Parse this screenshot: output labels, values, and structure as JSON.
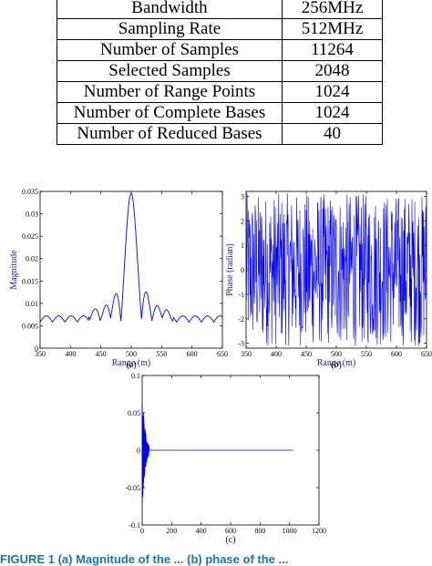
{
  "table": {
    "rows": [
      {
        "param": "Bandwidth",
        "value": "256MHz"
      },
      {
        "param": "Sampling Rate",
        "value": "512MHz"
      },
      {
        "param": "Number of Samples",
        "value": "11264"
      },
      {
        "param": "Selected Samples",
        "value": "2048"
      },
      {
        "param": "Number of Range Points",
        "value": "1024"
      },
      {
        "param": "Number of Complete Bases",
        "value": "1024"
      },
      {
        "param": "Number of Reduced Bases",
        "value": "40"
      }
    ]
  },
  "caption": "FIGURE 1  (a) Magnitude of the ... (b) phase of the ...",
  "colors": {
    "line": "#0000ff",
    "label": "#1a1aa6"
  },
  "chart_data": [
    {
      "type": "line",
      "sublabel": "(a)",
      "xlabel": "Range (m)",
      "ylabel": "Magnitude",
      "xlim": [
        350,
        650
      ],
      "ylim": [
        0,
        0.035
      ],
      "xticks": [
        350,
        400,
        450,
        500,
        550,
        600,
        650
      ],
      "yticks": [
        0,
        0.005,
        0.01,
        0.015,
        0.02,
        0.025,
        0.03,
        0.035
      ],
      "ytick_labels": [
        "0",
        "0.005",
        "0.01",
        "0.015",
        "0.02",
        "0.025",
        "0.03",
        "0.035"
      ],
      "series": [
        {
          "x": [
            350,
            400,
            460,
            500,
            540,
            580,
            650
          ],
          "y": [
            0.0065,
            0.007,
            0.028,
            0.0335,
            0.0195,
            0.008,
            0.0065
          ]
        }
      ]
    },
    {
      "type": "line",
      "sublabel": "(b)",
      "xlabel": "Range (m)",
      "ylabel": "Phase (radian)",
      "xlim": [
        350,
        650
      ],
      "ylim": [
        -3.2,
        3.2
      ],
      "xticks": [
        350,
        400,
        450,
        500,
        550,
        600,
        650
      ],
      "yticks": [
        -3,
        -2,
        -1,
        0,
        1,
        2,
        3
      ],
      "ytick_labels": [
        "-3",
        "-2",
        "-1",
        "0",
        "1",
        "2",
        "3"
      ],
      "series": [
        {
          "x": [
            350,
            650
          ],
          "y": [
            -3.14,
            3.14
          ]
        }
      ]
    },
    {
      "type": "line",
      "sublabel": "(c)",
      "xlabel": "",
      "ylabel": "",
      "xlim": [
        0,
        1200
      ],
      "ylim": [
        -0.1,
        0.1
      ],
      "xticks": [
        0,
        200,
        400,
        600,
        800,
        1000,
        1200
      ],
      "yticks": [
        -0.1,
        -0.05,
        0,
        0.05,
        0.1
      ],
      "ytick_labels": [
        "-0.1",
        "-0.05",
        "0",
        "0.05",
        "0.1"
      ],
      "series": [
        {
          "x": [
            0,
            40,
            1024
          ],
          "y": [
            0.075,
            -0.08,
            0
          ]
        }
      ]
    }
  ]
}
